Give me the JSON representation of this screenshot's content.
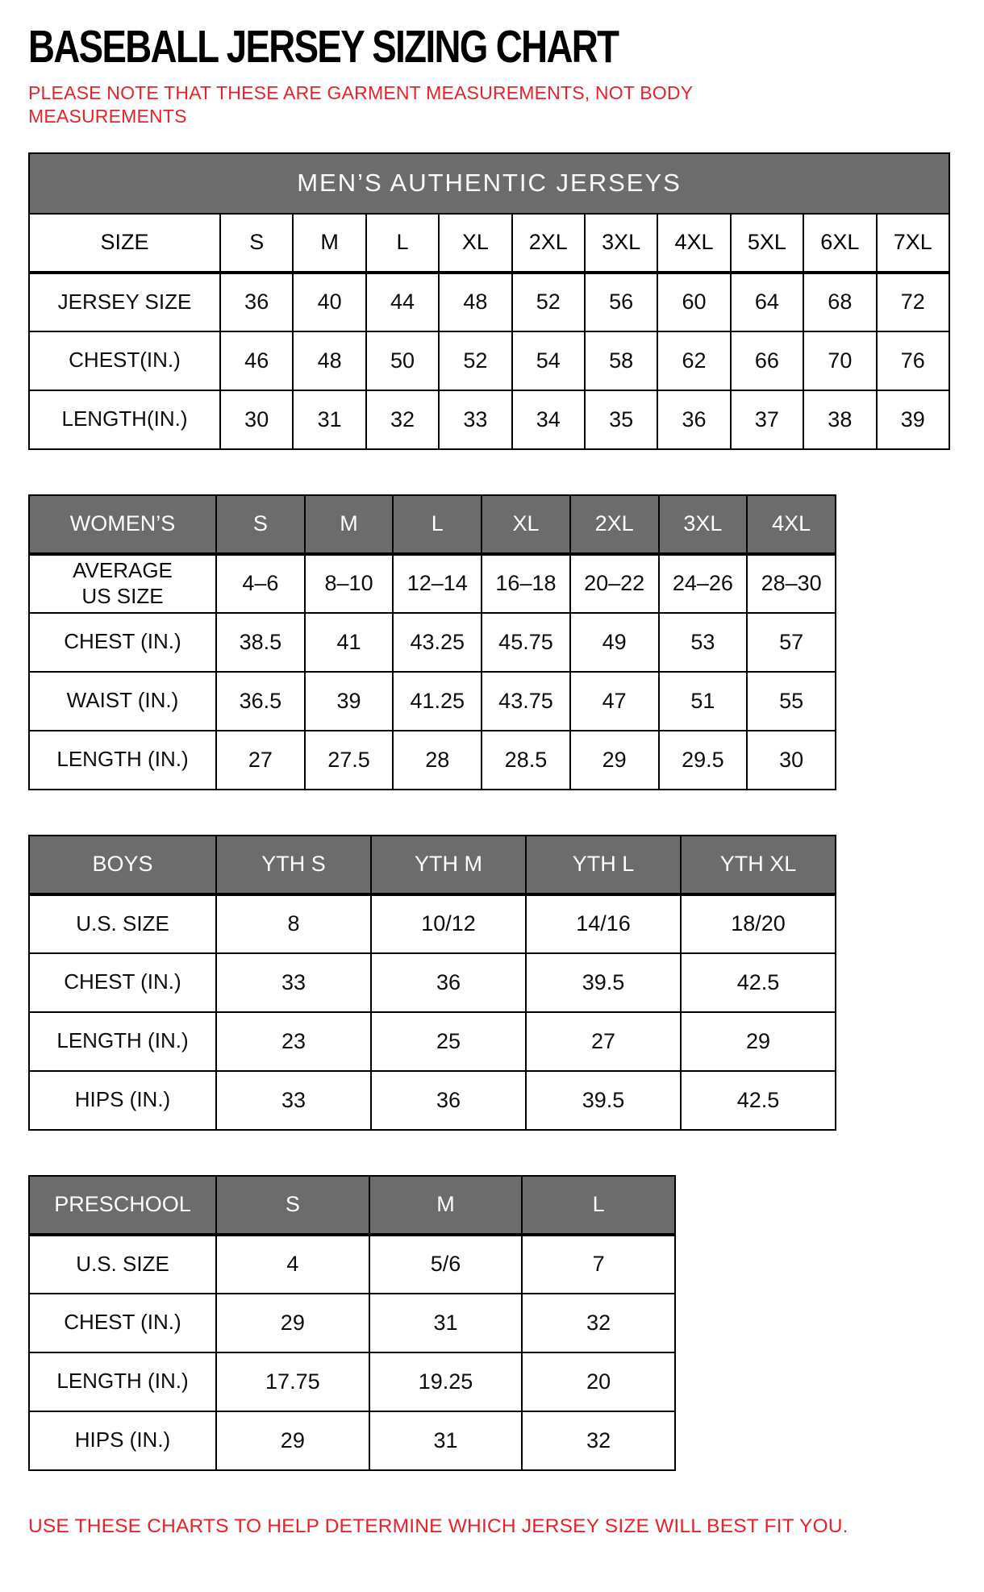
{
  "page": {
    "title": "BASEBALL JERSEY SIZING CHART",
    "note": "PLEASE NOTE THAT THESE ARE GARMENT MEASUREMENTS, NOT BODY MEASUREMENTS",
    "footer": "USE THESE CHARTS TO HELP DETERMINE WHICH JERSEY SIZE WILL BEST FIT YOU."
  },
  "colors": {
    "header_gray": "#6c6c6c",
    "accent_red": "#e8212b"
  },
  "tables": [
    {
      "id": "mens",
      "banner": "MEN’S AUTHENTIC JERSEYS",
      "header_gray": false,
      "header": [
        "SIZE",
        "S",
        "M",
        "L",
        "XL",
        "2XL",
        "3XL",
        "4XL",
        "5XL",
        "6XL",
        "7XL"
      ],
      "rows": [
        {
          "label": "JERSEY SIZE",
          "values": [
            "36",
            "40",
            "44",
            "48",
            "52",
            "56",
            "60",
            "64",
            "68",
            "72"
          ]
        },
        {
          "label": "CHEST(IN.)",
          "values": [
            "46",
            "48",
            "50",
            "52",
            "54",
            "58",
            "62",
            "66",
            "70",
            "76"
          ]
        },
        {
          "label": "LENGTH(IN.)",
          "values": [
            "30",
            "31",
            "32",
            "33",
            "34",
            "35",
            "36",
            "37",
            "38",
            "39"
          ]
        }
      ]
    },
    {
      "id": "womens",
      "banner": null,
      "header_gray": true,
      "header": [
        "WOMEN’S",
        "S",
        "M",
        "L",
        "XL",
        "2XL",
        "3XL",
        "4XL"
      ],
      "rows": [
        {
          "label": "AVERAGE\nUS SIZE",
          "values": [
            "4–6",
            "8–10",
            "12–14",
            "16–18",
            "20–22",
            "24–26",
            "28–30"
          ]
        },
        {
          "label": "CHEST (IN.)",
          "values": [
            "38.5",
            "41",
            "43.25",
            "45.75",
            "49",
            "53",
            "57"
          ]
        },
        {
          "label": "WAIST (IN.)",
          "values": [
            "36.5",
            "39",
            "41.25",
            "43.75",
            "47",
            "51",
            "55"
          ]
        },
        {
          "label": "LENGTH (IN.)",
          "values": [
            "27",
            "27.5",
            "28",
            "28.5",
            "29",
            "29.5",
            "30"
          ]
        }
      ]
    },
    {
      "id": "boys",
      "banner": null,
      "header_gray": true,
      "header": [
        "BOYS",
        "YTH S",
        "YTH M",
        "YTH L",
        "YTH XL"
      ],
      "rows": [
        {
          "label": "U.S. SIZE",
          "values": [
            "8",
            "10/12",
            "14/16",
            "18/20"
          ]
        },
        {
          "label": "CHEST (IN.)",
          "values": [
            "33",
            "36",
            "39.5",
            "42.5"
          ]
        },
        {
          "label": "LENGTH (IN.)",
          "values": [
            "23",
            "25",
            "27",
            "29"
          ]
        },
        {
          "label": "HIPS (IN.)",
          "values": [
            "33",
            "36",
            "39.5",
            "42.5"
          ]
        }
      ]
    },
    {
      "id": "preschool",
      "banner": null,
      "header_gray": true,
      "header": [
        "PRESCHOOL",
        "S",
        "M",
        "L"
      ],
      "rows": [
        {
          "label": "U.S. SIZE",
          "values": [
            "4",
            "5/6",
            "7"
          ]
        },
        {
          "label": "CHEST (IN.)",
          "values": [
            "29",
            "31",
            "32"
          ]
        },
        {
          "label": "LENGTH (IN.)",
          "values": [
            "17.75",
            "19.25",
            "20"
          ]
        },
        {
          "label": "HIPS (IN.)",
          "values": [
            "29",
            "31",
            "32"
          ]
        }
      ]
    }
  ]
}
